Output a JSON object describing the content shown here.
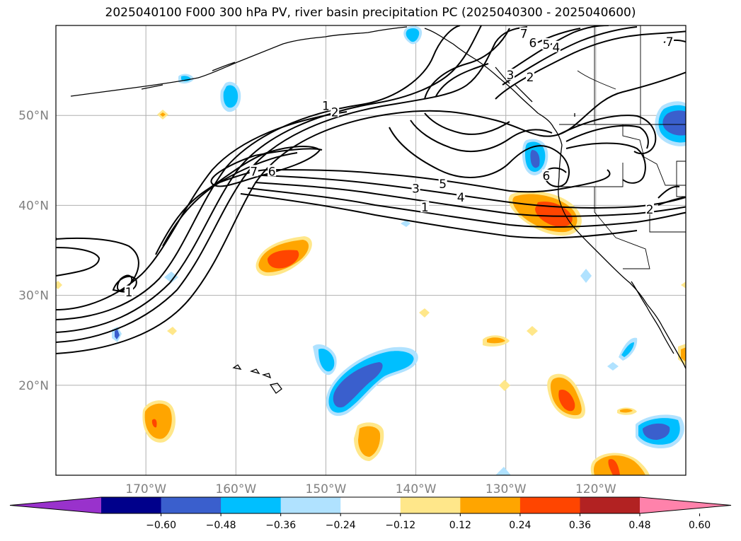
{
  "title": "2025040100 F000 300 hPa PV, river basin precipitation PC (2025040300 - 2025040600)",
  "map": {
    "lon_range": [
      -180,
      -110
    ],
    "lat_range": [
      10,
      60
    ],
    "lon_ticks": [
      {
        "lon": -170,
        "label": "170°W"
      },
      {
        "lon": -160,
        "label": "160°W"
      },
      {
        "lon": -150,
        "label": "150°W"
      },
      {
        "lon": -140,
        "label": "140°W"
      },
      {
        "lon": -130,
        "label": "130°W"
      },
      {
        "lon": -120,
        "label": "120°W"
      }
    ],
    "lat_ticks": [
      {
        "lat": 50,
        "label": "50°N"
      },
      {
        "lat": 40,
        "label": "40°N"
      },
      {
        "lat": 30,
        "label": "30°N"
      },
      {
        "lat": 20,
        "label": "20°N"
      }
    ],
    "grid": true,
    "contour_field": "300 hPa PV",
    "shaded_field": "river basin precipitation PC",
    "contour_labels": [
      {
        "text": "1",
        "lon": -150,
        "lat": 51
      },
      {
        "text": "2",
        "lon": -149,
        "lat": 50.3
      },
      {
        "text": "7",
        "lon": -158,
        "lat": 43.7
      },
      {
        "text": "6",
        "lon": -156,
        "lat": 43.7
      },
      {
        "text": "5",
        "lon": -137,
        "lat": 42.3
      },
      {
        "text": "3",
        "lon": -140,
        "lat": 41.8
      },
      {
        "text": "4",
        "lon": -135,
        "lat": 40.8
      },
      {
        "text": "1",
        "lon": -139,
        "lat": 39.7
      },
      {
        "text": "7",
        "lon": -128,
        "lat": 59
      },
      {
        "text": "6",
        "lon": -127,
        "lat": 58
      },
      {
        "text": "5",
        "lon": -125.5,
        "lat": 57.8
      },
      {
        "text": "4",
        "lon": -124.4,
        "lat": 57.5
      },
      {
        "text": "3",
        "lon": -129.5,
        "lat": 54.4
      },
      {
        "text": "2",
        "lon": -127.3,
        "lat": 54.2
      },
      {
        "text": "6",
        "lon": -125.5,
        "lat": 43.2
      },
      {
        "text": "2",
        "lon": -114,
        "lat": 39.5
      },
      {
        "text": "1",
        "lon": -171.9,
        "lat": 30.3
      },
      {
        "text": "7",
        "lon": -111.8,
        "lat": 58.1
      }
    ]
  },
  "colorbar": {
    "ticks": [
      "−0.60",
      "−0.48",
      "−0.36",
      "−0.24",
      "−0.12",
      "0.12",
      "0.24",
      "0.36",
      "0.48",
      "0.60"
    ],
    "colors": [
      "#9932cc",
      "#00008b",
      "#3a5fcd",
      "#00bfff",
      "#b0e2ff",
      "#ffffff",
      "#ffe78a",
      "#ffa500",
      "#ff4500",
      "#b22222",
      "#ff82ab"
    ]
  }
}
